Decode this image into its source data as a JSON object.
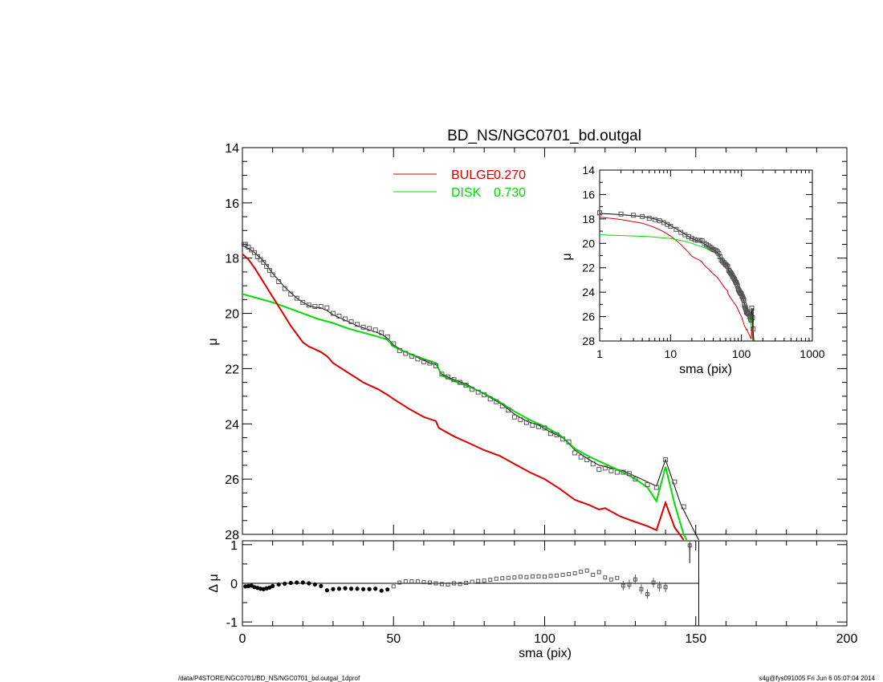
{
  "chart_data": {
    "type": "line",
    "title": "BD_NS/NGC0701_bd.outgal",
    "footer_left": "/data/P4STORE/NGC0701/BD_NS/NGC0701_bd.outgal_1dprof",
    "footer_right": "s4g@fys091005  Fri Jun  6 05:07:04 2014",
    "colors": {
      "bulge": "#dd0000",
      "disk": "#00dd00",
      "model": "#000000",
      "data": "#555555"
    },
    "main": {
      "xlabel": "",
      "ylabel": "μ",
      "xlim": [
        0,
        200
      ],
      "ylim": [
        28,
        14
      ],
      "y_ticks": [
        "14",
        "16",
        "18",
        "20",
        "22",
        "24",
        "26",
        "28"
      ],
      "legend": [
        {
          "name": "BULGE",
          "value": "0.270",
          "color": "#dd0000"
        },
        {
          "name": "DISK",
          "value": "0.730",
          "color": "#00dd00"
        }
      ],
      "data_points": [
        [
          0.5,
          17.5
        ],
        [
          1,
          17.5
        ],
        [
          2,
          17.6
        ],
        [
          3,
          17.7
        ],
        [
          4,
          17.8
        ],
        [
          5,
          17.95
        ],
        [
          6,
          18.05
        ],
        [
          7,
          18.15
        ],
        [
          8,
          18.3
        ],
        [
          9,
          18.45
        ],
        [
          10,
          18.6
        ],
        [
          12,
          18.85
        ],
        [
          14,
          19.1
        ],
        [
          16,
          19.3
        ],
        [
          18,
          19.45
        ],
        [
          20,
          19.6
        ],
        [
          22,
          19.7
        ],
        [
          24,
          19.75
        ],
        [
          26,
          19.75
        ],
        [
          28,
          19.8
        ],
        [
          30,
          20.0
        ],
        [
          32,
          20.1
        ],
        [
          34,
          20.2
        ],
        [
          36,
          20.3
        ],
        [
          38,
          20.4
        ],
        [
          40,
          20.5
        ],
        [
          42,
          20.55
        ],
        [
          44,
          20.6
        ],
        [
          46,
          20.7
        ],
        [
          48,
          20.85
        ],
        [
          50,
          21.1
        ],
        [
          52,
          21.35
        ],
        [
          54,
          21.45
        ],
        [
          56,
          21.55
        ],
        [
          58,
          21.65
        ],
        [
          60,
          21.75
        ],
        [
          62,
          21.8
        ],
        [
          64,
          21.9
        ],
        [
          66,
          22.2
        ],
        [
          68,
          22.3
        ],
        [
          70,
          22.4
        ],
        [
          72,
          22.5
        ],
        [
          74,
          22.6
        ],
        [
          76,
          22.75
        ],
        [
          78,
          22.85
        ],
        [
          80,
          22.95
        ],
        [
          82,
          23.1
        ],
        [
          84,
          23.2
        ],
        [
          86,
          23.35
        ],
        [
          88,
          23.5
        ],
        [
          90,
          23.75
        ],
        [
          92,
          23.85
        ],
        [
          94,
          23.95
        ],
        [
          96,
          24.05
        ],
        [
          98,
          24.1
        ],
        [
          100,
          24.15
        ],
        [
          102,
          24.35
        ],
        [
          104,
          24.4
        ],
        [
          106,
          24.55
        ],
        [
          108,
          24.65
        ],
        [
          110,
          25.05
        ],
        [
          112,
          25.2
        ],
        [
          114,
          25.3
        ],
        [
          116,
          25.45
        ],
        [
          118,
          25.65
        ],
        [
          120,
          25.6
        ],
        [
          122,
          25.7
        ],
        [
          124,
          25.75
        ],
        [
          126,
          25.75
        ],
        [
          128,
          25.8
        ],
        [
          130,
          26.0
        ],
        [
          134,
          26.2
        ],
        [
          137,
          26.3
        ],
        [
          140,
          25.3
        ],
        [
          143,
          26.1
        ],
        [
          146,
          27.0
        ]
      ],
      "model": [
        [
          0,
          17.55
        ],
        [
          2,
          17.65
        ],
        [
          4,
          17.8
        ],
        [
          6,
          18.0
        ],
        [
          8,
          18.25
        ],
        [
          10,
          18.55
        ],
        [
          12,
          18.8
        ],
        [
          14,
          19.05
        ],
        [
          16,
          19.25
        ],
        [
          18,
          19.45
        ],
        [
          20,
          19.6
        ],
        [
          22,
          19.72
        ],
        [
          24,
          19.78
        ],
        [
          26,
          19.8
        ],
        [
          28,
          19.9
        ],
        [
          30,
          20.05
        ],
        [
          34,
          20.25
        ],
        [
          38,
          20.45
        ],
        [
          42,
          20.6
        ],
        [
          46,
          20.75
        ],
        [
          48,
          20.9
        ],
        [
          50,
          21.15
        ],
        [
          54,
          21.4
        ],
        [
          58,
          21.6
        ],
        [
          62,
          21.8
        ],
        [
          64,
          21.85
        ],
        [
          66,
          22.2
        ],
        [
          70,
          22.4
        ],
        [
          74,
          22.55
        ],
        [
          78,
          22.8
        ],
        [
          82,
          23.05
        ],
        [
          86,
          23.3
        ],
        [
          90,
          23.65
        ],
        [
          94,
          23.9
        ],
        [
          98,
          24.05
        ],
        [
          102,
          24.3
        ],
        [
          106,
          24.5
        ],
        [
          110,
          24.95
        ],
        [
          114,
          25.25
        ],
        [
          118,
          25.5
        ],
        [
          122,
          25.6
        ],
        [
          126,
          25.7
        ],
        [
          130,
          25.9
        ],
        [
          134,
          26.1
        ],
        [
          137,
          26.25
        ],
        [
          140,
          25.3
        ],
        [
          145,
          26.9
        ],
        [
          150,
          28.0
        ],
        [
          151,
          28.2
        ]
      ],
      "disk": [
        [
          0,
          19.3
        ],
        [
          5,
          19.45
        ],
        [
          10,
          19.6
        ],
        [
          15,
          19.8
        ],
        [
          20,
          20.0
        ],
        [
          25,
          20.2
        ],
        [
          30,
          20.35
        ],
        [
          35,
          20.55
        ],
        [
          40,
          20.7
        ],
        [
          45,
          20.85
        ],
        [
          48,
          20.95
        ],
        [
          50,
          21.2
        ],
        [
          55,
          21.45
        ],
        [
          60,
          21.65
        ],
        [
          64,
          21.8
        ],
        [
          66,
          22.25
        ],
        [
          70,
          22.45
        ],
        [
          75,
          22.65
        ],
        [
          80,
          22.9
        ],
        [
          85,
          23.2
        ],
        [
          90,
          23.55
        ],
        [
          95,
          23.85
        ],
        [
          100,
          24.1
        ],
        [
          105,
          24.4
        ],
        [
          110,
          24.9
        ],
        [
          115,
          25.2
        ],
        [
          120,
          25.45
        ],
        [
          125,
          25.7
        ],
        [
          130,
          26.0
        ],
        [
          134,
          26.3
        ],
        [
          137,
          26.8
        ],
        [
          140,
          25.55
        ],
        [
          143,
          26.9
        ],
        [
          146,
          28.0
        ],
        [
          147,
          28.2
        ]
      ],
      "bulge": [
        [
          0,
          17.85
        ],
        [
          2,
          18.05
        ],
        [
          4,
          18.35
        ],
        [
          6,
          18.7
        ],
        [
          8,
          19.05
        ],
        [
          10,
          19.4
        ],
        [
          12,
          19.75
        ],
        [
          14,
          20.1
        ],
        [
          16,
          20.45
        ],
        [
          18,
          20.75
        ],
        [
          20,
          21.05
        ],
        [
          22,
          21.2
        ],
        [
          24,
          21.3
        ],
        [
          26,
          21.4
        ],
        [
          28,
          21.55
        ],
        [
          30,
          21.8
        ],
        [
          35,
          22.15
        ],
        [
          40,
          22.5
        ],
        [
          45,
          22.75
        ],
        [
          48,
          22.95
        ],
        [
          50,
          23.1
        ],
        [
          55,
          23.45
        ],
        [
          60,
          23.75
        ],
        [
          64,
          23.9
        ],
        [
          65,
          24.15
        ],
        [
          70,
          24.45
        ],
        [
          75,
          24.7
        ],
        [
          80,
          24.95
        ],
        [
          85,
          25.15
        ],
        [
          90,
          25.45
        ],
        [
          95,
          25.75
        ],
        [
          100,
          26.0
        ],
        [
          105,
          26.35
        ],
        [
          110,
          26.75
        ],
        [
          115,
          26.95
        ],
        [
          118,
          27.1
        ],
        [
          120,
          27.05
        ],
        [
          125,
          27.35
        ],
        [
          130,
          27.55
        ],
        [
          134,
          27.7
        ],
        [
          137,
          27.85
        ],
        [
          140,
          26.85
        ],
        [
          143,
          27.75
        ],
        [
          145,
          28.05
        ],
        [
          146,
          28.2
        ]
      ]
    },
    "residual": {
      "xlabel": "sma (pix)",
      "ylabel": "Δ μ",
      "xlim": [
        0,
        200
      ],
      "ylim": [
        -1.1,
        1.1
      ],
      "x_ticks": [
        "0",
        "50",
        "100",
        "150",
        "200"
      ],
      "y_ticks": [
        "1",
        "0",
        "-1"
      ],
      "cutoff_x": 151,
      "points": [
        [
          1,
          -0.08
        ],
        [
          2,
          -0.07
        ],
        [
          3,
          -0.06
        ],
        [
          4,
          -0.1
        ],
        [
          5,
          -0.12
        ],
        [
          6,
          -0.14
        ],
        [
          7,
          -0.15
        ],
        [
          8,
          -0.13
        ],
        [
          9,
          -0.11
        ],
        [
          10,
          -0.07
        ],
        [
          12,
          -0.03
        ],
        [
          14,
          -0.01
        ],
        [
          16,
          0.01
        ],
        [
          18,
          0.02
        ],
        [
          20,
          0.02
        ],
        [
          22,
          0.0
        ],
        [
          24,
          -0.03
        ],
        [
          26,
          -0.07
        ],
        [
          28,
          -0.18
        ],
        [
          30,
          -0.15
        ],
        [
          32,
          -0.14
        ],
        [
          34,
          -0.13
        ],
        [
          36,
          -0.14
        ],
        [
          38,
          -0.14
        ],
        [
          40,
          -0.15
        ],
        [
          42,
          -0.15
        ],
        [
          44,
          -0.14
        ],
        [
          46,
          -0.19
        ],
        [
          48,
          -0.16
        ],
        [
          50,
          -0.08
        ],
        [
          52,
          0.02
        ],
        [
          54,
          0.05
        ],
        [
          56,
          0.05
        ],
        [
          58,
          0.05
        ],
        [
          60,
          0.03
        ],
        [
          62,
          0.02
        ],
        [
          64,
          0.0
        ],
        [
          66,
          -0.02
        ],
        [
          68,
          -0.03
        ],
        [
          70,
          0.0
        ],
        [
          72,
          -0.02
        ],
        [
          74,
          0.01
        ],
        [
          76,
          0.04
        ],
        [
          78,
          0.06
        ],
        [
          80,
          0.07
        ],
        [
          82,
          0.09
        ],
        [
          84,
          0.12
        ],
        [
          86,
          0.13
        ],
        [
          88,
          0.14
        ],
        [
          90,
          0.15
        ],
        [
          92,
          0.17
        ],
        [
          94,
          0.16
        ],
        [
          96,
          0.18
        ],
        [
          98,
          0.18
        ],
        [
          100,
          0.17
        ],
        [
          102,
          0.19
        ],
        [
          104,
          0.2
        ],
        [
          106,
          0.22
        ],
        [
          108,
          0.24
        ],
        [
          110,
          0.26
        ],
        [
          112,
          0.3
        ],
        [
          114,
          0.33
        ],
        [
          116,
          0.22
        ],
        [
          118,
          0.29
        ],
        [
          120,
          0.15
        ],
        [
          122,
          0.1
        ],
        [
          124,
          0.14
        ],
        [
          126,
          -0.06
        ],
        [
          128,
          -0.03
        ],
        [
          130,
          0.1
        ],
        [
          132,
          -0.15
        ],
        [
          134,
          -0.28
        ],
        [
          136,
          0.02
        ],
        [
          138,
          -0.08
        ],
        [
          140,
          -0.1
        ],
        [
          148,
          0.98
        ]
      ]
    },
    "inset": {
      "xlabel": "sma (pix)",
      "ylabel": "μ",
      "xscale": "log",
      "xlim": [
        1,
        1000
      ],
      "ylim": [
        28,
        14
      ],
      "x_ticks": [
        "1",
        "10",
        "100",
        "1000"
      ],
      "y_ticks": [
        "14",
        "16",
        "18",
        "20",
        "22",
        "24",
        "26",
        "28"
      ]
    }
  }
}
